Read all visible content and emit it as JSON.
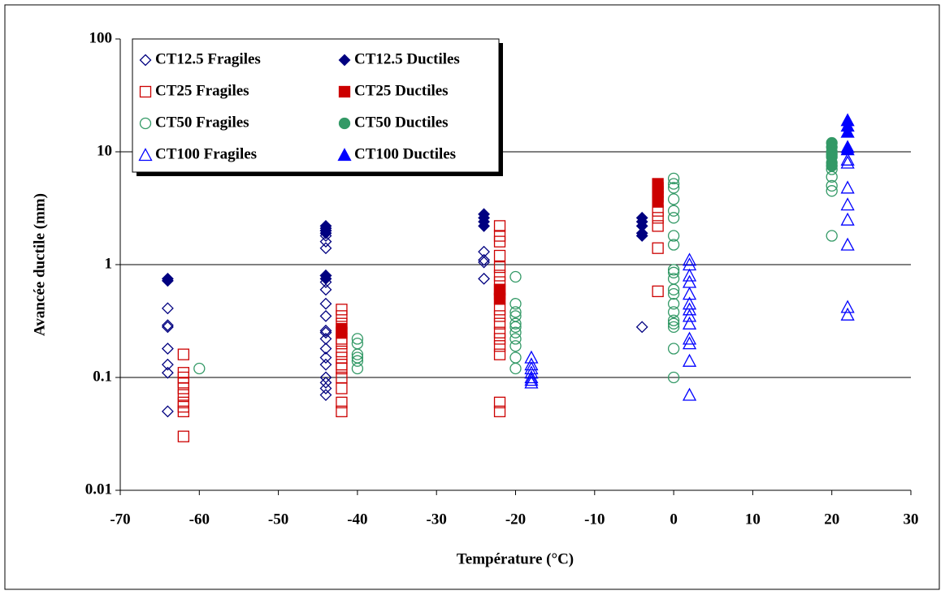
{
  "chart_data": {
    "type": "scatter",
    "xlabel": "Température (°C)",
    "ylabel": "Avancée ductile (mm)",
    "xlim": [
      -70,
      30
    ],
    "xticks": [
      -70,
      -60,
      -50,
      -40,
      -30,
      -20,
      -10,
      0,
      10,
      20,
      30
    ],
    "ylim": [
      0.01,
      100
    ],
    "yticks": [
      0.01,
      0.1,
      1,
      10,
      100
    ],
    "log_y": true,
    "grid": true,
    "legend_position": "upper left",
    "series": [
      {
        "name": "CT12.5 Fragiles",
        "color": "#000080",
        "marker": "diamond",
        "filled": false,
        "x": [
          -64,
          -64,
          -64,
          -64,
          -64,
          -64,
          -64,
          -44,
          -44,
          -44,
          -44,
          -44,
          -44,
          -44,
          -44,
          -44,
          -44,
          -44,
          -44,
          -44,
          -44,
          -44,
          -44,
          -44,
          -44,
          -44,
          -24,
          -24,
          -24,
          -24,
          -4
        ],
        "values": [
          0.41,
          0.29,
          0.28,
          0.18,
          0.13,
          0.11,
          0.05,
          2.0,
          1.8,
          1.6,
          1.4,
          0.8,
          0.7,
          0.6,
          0.45,
          0.35,
          0.26,
          0.25,
          0.22,
          0.18,
          0.15,
          0.13,
          0.1,
          0.09,
          0.08,
          0.07,
          1.3,
          1.1,
          1.05,
          0.75,
          0.28
        ]
      },
      {
        "name": "CT12.5 Ductiles",
        "color": "#000080",
        "marker": "diamond",
        "filled": true,
        "x": [
          -64,
          -64,
          -44,
          -44,
          -44,
          -44,
          -44,
          -44,
          -24,
          -24,
          -24,
          -24,
          -4,
          -4,
          -4,
          -4,
          -4
        ],
        "values": [
          0.75,
          0.72,
          2.2,
          2.1,
          2.0,
          1.9,
          0.8,
          0.75,
          2.8,
          2.6,
          2.4,
          2.2,
          2.6,
          2.4,
          2.2,
          1.9,
          1.8
        ]
      },
      {
        "name": "CT25 Fragiles",
        "color": "#cc0000",
        "marker": "square",
        "filled": false,
        "x": [
          -62,
          -62,
          -62,
          -62,
          -62,
          -62,
          -62,
          -62,
          -62,
          -62,
          -42,
          -42,
          -42,
          -42,
          -42,
          -42,
          -42,
          -42,
          -42,
          -42,
          -42,
          -42,
          -42,
          -42,
          -22,
          -22,
          -22,
          -22,
          -22,
          -22,
          -22,
          -22,
          -22,
          -22,
          -22,
          -22,
          -22,
          -22,
          -22,
          -22,
          -22,
          -22,
          -2,
          -2,
          -2,
          -2,
          -2
        ],
        "values": [
          0.16,
          0.11,
          0.1,
          0.09,
          0.08,
          0.07,
          0.06,
          0.055,
          0.05,
          0.03,
          0.4,
          0.35,
          0.3,
          0.25,
          0.22,
          0.2,
          0.17,
          0.15,
          0.13,
          0.12,
          0.1,
          0.08,
          0.06,
          0.05,
          2.2,
          1.8,
          1.6,
          1.2,
          0.95,
          0.8,
          0.7,
          0.6,
          0.5,
          0.4,
          0.35,
          0.3,
          0.25,
          0.22,
          0.19,
          0.16,
          0.06,
          0.05,
          3.0,
          2.6,
          2.2,
          1.4,
          0.58
        ]
      },
      {
        "name": "CT25 Ductiles",
        "color": "#cc0000",
        "marker": "square",
        "filled": true,
        "x": [
          -42,
          -42,
          -22,
          -22,
          -22,
          -2,
          -2,
          -2,
          -2,
          -2
        ],
        "values": [
          0.25,
          0.27,
          0.55,
          0.6,
          0.5,
          5.2,
          4.8,
          4.4,
          4.0,
          3.6
        ]
      },
      {
        "name": "CT50 Fragiles",
        "color": "#339966",
        "marker": "circle",
        "filled": false,
        "x": [
          -60,
          -40,
          -40,
          -40,
          -40,
          -40,
          -40,
          -20,
          -20,
          -20,
          -20,
          -20,
          -20,
          -20,
          -20,
          -20,
          -20,
          -20,
          0,
          0,
          0,
          0,
          0,
          0,
          0,
          0,
          0,
          0,
          0,
          0,
          0,
          0,
          0,
          0,
          0,
          0,
          0,
          0,
          20,
          20,
          20,
          20,
          20
        ],
        "values": [
          0.12,
          0.22,
          0.2,
          0.16,
          0.15,
          0.14,
          0.12,
          0.78,
          0.45,
          0.38,
          0.35,
          0.3,
          0.28,
          0.25,
          0.22,
          0.19,
          0.15,
          0.12,
          5.8,
          5.2,
          4.8,
          3.8,
          3.0,
          2.6,
          1.8,
          1.5,
          0.9,
          0.85,
          0.75,
          0.6,
          0.55,
          0.45,
          0.38,
          0.32,
          0.3,
          0.28,
          0.18,
          0.1,
          1.8,
          4.5,
          5,
          6,
          7
        ]
      },
      {
        "name": "CT50 Ductiles",
        "color": "#339966",
        "marker": "circle",
        "filled": true,
        "x": [
          20,
          20,
          20,
          20,
          20,
          20,
          20
        ],
        "values": [
          12,
          11,
          10,
          9.5,
          9,
          8,
          7.5
        ]
      },
      {
        "name": "CT100 Fragiles",
        "color": "#0000ff",
        "marker": "triangle",
        "filled": false,
        "x": [
          -18,
          -18,
          -18,
          -18,
          -18,
          -18,
          -18,
          2,
          2,
          2,
          2,
          2,
          2,
          2,
          2,
          2,
          2,
          2,
          2,
          2,
          22,
          22,
          22,
          22,
          22,
          22,
          22,
          22
        ],
        "values": [
          0.15,
          0.13,
          0.12,
          0.11,
          0.1,
          0.095,
          0.09,
          1.1,
          1.0,
          0.8,
          0.7,
          0.55,
          0.45,
          0.4,
          0.35,
          0.3,
          0.22,
          0.2,
          0.14,
          0.07,
          8.5,
          8,
          4.8,
          3.4,
          2.5,
          1.5,
          0.42,
          0.36
        ]
      },
      {
        "name": "CT100 Ductiles",
        "color": "#0000ff",
        "marker": "triangle",
        "filled": true,
        "x": [
          22,
          22,
          22,
          22,
          22
        ],
        "values": [
          19,
          17,
          15,
          11,
          10.5
        ]
      }
    ]
  }
}
